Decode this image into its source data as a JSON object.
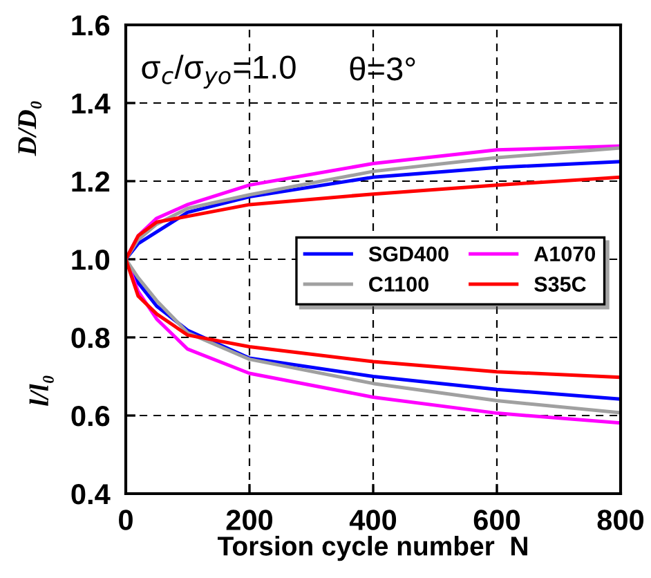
{
  "chart_data": {
    "type": "line",
    "xlabel": "Torsion cycle number  N",
    "ylabel": "D/D₀",
    "annotations": [
      "σ$_{c}$/σ$_{yo}$=1.0",
      "θ=3°",
      "l/l₀"
    ],
    "x": [
      0,
      20,
      50,
      100,
      200,
      400,
      600,
      800
    ],
    "series": [
      {
        "name": "SGD400",
        "color": "#0000ff",
        "values": [
          1.0,
          1.04,
          1.07,
          1.12,
          1.16,
          1.21,
          1.235,
          1.25
        ]
      },
      {
        "name": "A1070",
        "color": "#ff00ff",
        "values": [
          1.0,
          1.06,
          1.105,
          1.14,
          1.19,
          1.245,
          1.28,
          1.29
        ]
      },
      {
        "name": "C1100",
        "color": "#a0a0a0",
        "values": [
          1.0,
          1.05,
          1.09,
          1.13,
          1.165,
          1.225,
          1.26,
          1.285
        ]
      },
      {
        "name": "S35C",
        "color": "#ff0000",
        "values": [
          1.0,
          1.06,
          1.095,
          1.11,
          1.14,
          1.167,
          1.19,
          1.21
        ]
      },
      {
        "color": "#0000ff",
        "values": [
          1.0,
          0.94,
          0.88,
          0.818,
          0.747,
          0.7,
          0.667,
          0.642
        ]
      },
      {
        "color": "#ff00ff",
        "values": [
          1.0,
          0.918,
          0.847,
          0.77,
          0.708,
          0.647,
          0.606,
          0.581
        ]
      },
      {
        "color": "#a0a0a0",
        "values": [
          1.0,
          0.953,
          0.894,
          0.812,
          0.744,
          0.682,
          0.638,
          0.607
        ]
      },
      {
        "color": "#ff0000",
        "values": [
          1.0,
          0.906,
          0.86,
          0.806,
          0.776,
          0.738,
          0.712,
          0.698
        ]
      }
    ],
    "xlim": [
      0,
      800
    ],
    "xticks": [
      0,
      200,
      400,
      600,
      800
    ],
    "ylim": [
      0.4,
      1.6
    ],
    "yticks": [
      {
        "value": 0.4,
        "label": "0.4"
      },
      {
        "value": 0.6,
        "label": "0.6"
      },
      {
        "value": 0.8,
        "label": "0.8"
      },
      {
        "value": 1,
        "label": "1.0"
      },
      {
        "value": 1.2,
        "label": "1.2"
      },
      {
        "value": 1.4,
        "label": "1.4"
      },
      {
        "value": 1.6,
        "label": "1.6"
      }
    ],
    "grid": true,
    "legend": "right",
    "marker": "none",
    "line_style": "solid"
  }
}
